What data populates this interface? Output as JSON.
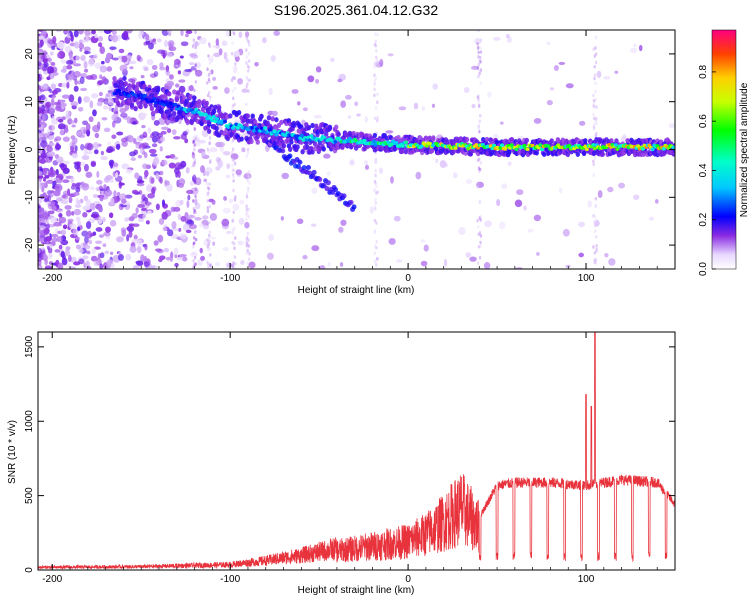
{
  "title": "S196.2025.361.04.12.G32",
  "chart_data": [
    {
      "type": "heatmap",
      "title": "S196.2025.361.04.12.G32",
      "xlabel": "Height of straight line (km)",
      "ylabel": "Frequency (Hz)",
      "xlim": [
        -208,
        150
      ],
      "ylim": [
        -25,
        25
      ],
      "xticks": [
        -200,
        -100,
        0,
        100
      ],
      "yticks": [
        -20,
        -10,
        0,
        10,
        20
      ],
      "colorbar": {
        "label": "Normalized spectral amplitude",
        "range": [
          0,
          0.97
        ],
        "ticks": [
          0.0,
          0.2,
          0.4,
          0.6,
          0.8
        ]
      },
      "ridge": {
        "description_points_x": [
          -160,
          -120,
          -100,
          -80,
          -60,
          -40,
          -20,
          0,
          50,
          100,
          150
        ],
        "description_points_y": [
          12,
          8,
          5,
          4,
          2.5,
          2,
          1.5,
          1,
          0.5,
          0.5,
          0.5
        ]
      }
    },
    {
      "type": "line",
      "xlabel": "Height of straight line (km)",
      "ylabel": "SNR (10 * v/v)",
      "xlim": [
        -208,
        150
      ],
      "ylim": [
        0,
        1600
      ],
      "xticks": [
        -200,
        -100,
        0,
        100
      ],
      "yticks": [
        0,
        500,
        1000,
        1500
      ],
      "color": "#e8323c",
      "envelope_x": [
        -208,
        -150,
        -100,
        -80,
        -60,
        -40,
        -20,
        0,
        10,
        20,
        30,
        40,
        50,
        60,
        80,
        100,
        120,
        140,
        150
      ],
      "envelope_y": [
        20,
        25,
        40,
        70,
        110,
        160,
        200,
        240,
        300,
        400,
        520,
        360,
        580,
        600,
        600,
        580,
        620,
        600,
        450
      ],
      "spikes": [
        {
          "x": 100,
          "y": 1180
        },
        {
          "x": 103,
          "y": 1100
        },
        {
          "x": 105,
          "y": 1600
        }
      ]
    }
  ]
}
